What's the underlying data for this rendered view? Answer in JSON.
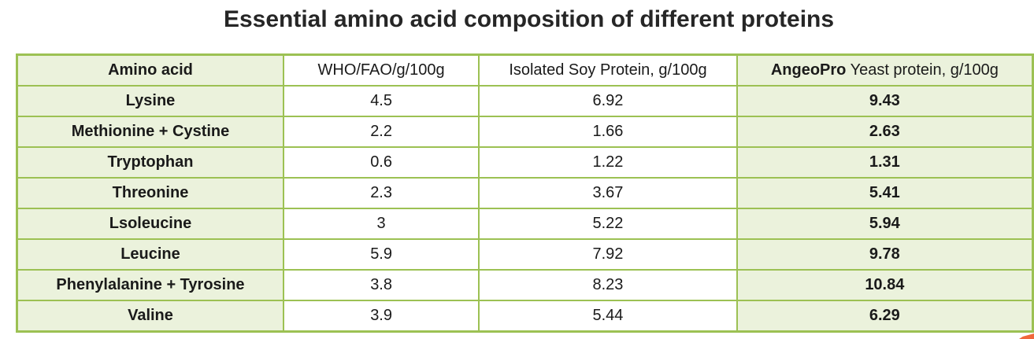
{
  "chart_data": {
    "type": "table",
    "title": "Essential amino acid composition of different proteins",
    "columns": [
      "Amino acid",
      "WHO/FAO/g/100g",
      "Isolated Soy Protein, g/100g",
      "AngeoPro Yeast protein, g/100g"
    ],
    "rows": [
      [
        "Lysine",
        "4.5",
        "6.92",
        "9.43"
      ],
      [
        "Methionine + Cystine",
        "2.2",
        "1.66",
        "2.63"
      ],
      [
        "Tryptophan",
        "0.6",
        "1.22",
        "1.31"
      ],
      [
        "Threonine",
        "2.3",
        "3.67",
        "5.41"
      ],
      [
        "Lsoleucine",
        "3",
        "5.22",
        "5.94"
      ],
      [
        "Leucine",
        "5.9",
        "7.92",
        "9.78"
      ],
      [
        "Phenylalanine + Tyrosine",
        "3.8",
        "8.23",
        "10.84"
      ],
      [
        "Valine",
        "3.9",
        "5.44",
        "6.29"
      ]
    ]
  },
  "header": {
    "amino_acid": "Amino acid",
    "who_fao": "WHO/FAO/g/100g",
    "soy": "Isolated Soy Protein, g/100g",
    "angeopro_brand": "AngeoPro",
    "angeopro_rest": " Yeast protein, g/100g"
  },
  "colors": {
    "border_green": "#9cc153",
    "cell_green": "#ebf2dc",
    "title_text": "#262626",
    "accent_orange": "#f0683c"
  }
}
